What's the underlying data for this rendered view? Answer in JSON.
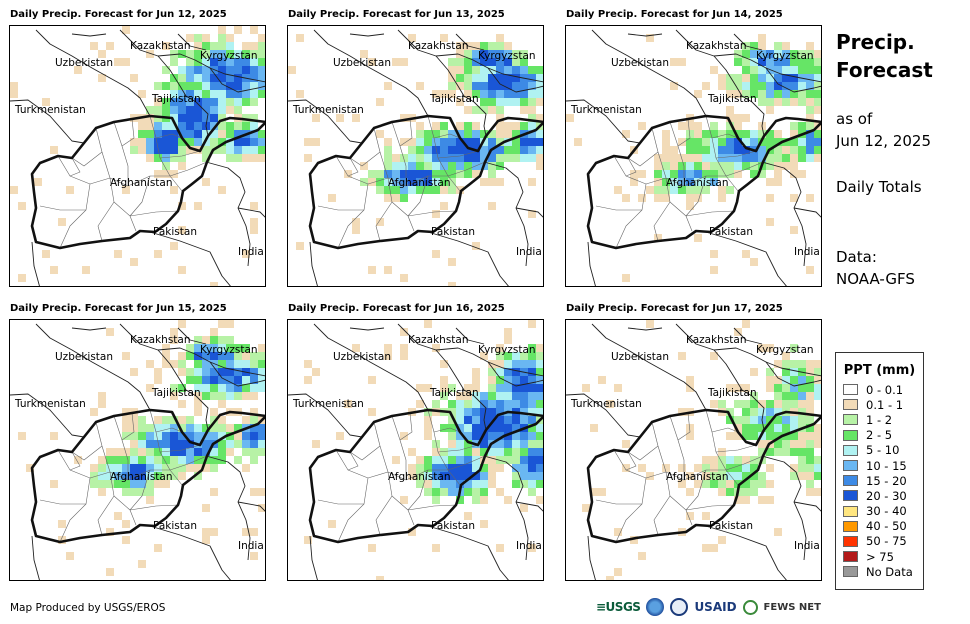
{
  "panels": [
    {
      "title": "Daily Precip. Forecast for Jun 12, 2025",
      "intensity": 1.0,
      "focus": "north"
    },
    {
      "title": "Daily Precip. Forecast for Jun 13, 2025",
      "intensity": 1.0,
      "focus": "central"
    },
    {
      "title": "Daily Precip. Forecast for Jun 14, 2025",
      "intensity": 0.8,
      "focus": "central"
    },
    {
      "title": "Daily Precip. Forecast for Jun 15, 2025",
      "intensity": 0.9,
      "focus": "central"
    },
    {
      "title": "Daily Precip. Forecast for Jun 16, 2025",
      "intensity": 1.0,
      "focus": "east"
    },
    {
      "title": "Daily Precip. Forecast for Jun 17, 2025",
      "intensity": 0.5,
      "focus": "east"
    }
  ],
  "countries": {
    "kazakhstan": "Kazakhstan",
    "kyrgyzstan": "Kyrgyzstan",
    "uzbekistan": "Uzbekistan",
    "tajikistan": "Tajikistan",
    "turkmenistan": "Turkmenistan",
    "afghanistan": "Afghanistan",
    "pakistan": "Pakistan",
    "india": "India"
  },
  "side": {
    "title_line1": "Precip.",
    "title_line2": "Forecast",
    "asof_line1": "as of",
    "asof_line2": "Jun 12, 2025",
    "totals": "Daily Totals",
    "data_line1": "Data:",
    "data_line2": "NOAA-GFS"
  },
  "legend": {
    "title": "PPT (mm)",
    "items": [
      {
        "label": "0 - 0.1",
        "color": "#ffffff"
      },
      {
        "label": "0.1 - 1",
        "color": "#f2dbb8"
      },
      {
        "label": "1 - 2",
        "color": "#b7f2a6"
      },
      {
        "label": "2 - 5",
        "color": "#66e566"
      },
      {
        "label": "5 - 10",
        "color": "#b0f2f2"
      },
      {
        "label": "10 - 15",
        "color": "#6ab7f2"
      },
      {
        "label": "15 - 20",
        "color": "#3d8ae5"
      },
      {
        "label": "20 - 30",
        "color": "#1a56d6"
      },
      {
        "label": "30 - 40",
        "color": "#ffe680"
      },
      {
        "label": "40 - 50",
        "color": "#ff9900"
      },
      {
        "label": "50 - 75",
        "color": "#ff3300"
      },
      {
        "label": "> 75",
        "color": "#b31a1a"
      },
      {
        "label": "No Data",
        "color": "#999999"
      }
    ]
  },
  "credit": "Map Produced by USGS/EROS",
  "logos": {
    "usgs": "≡USGS",
    "usaid": "USAID",
    "fews": "FEWS NET"
  }
}
